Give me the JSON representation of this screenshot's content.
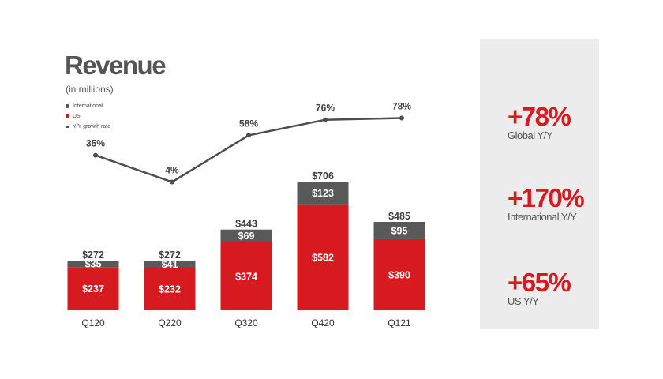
{
  "title": "Revenue",
  "subtitle": "(in millions)",
  "legend": {
    "international": "International",
    "us": "US",
    "growth": "Y/Y growth rate"
  },
  "colors": {
    "international": "#595959",
    "us": "#d71920",
    "growth_line": "#4d4d4d",
    "panel": "#ececec"
  },
  "chart_data": {
    "type": "bar",
    "stacked": true,
    "categories": [
      "Q120",
      "Q220",
      "Q320",
      "Q420",
      "Q121"
    ],
    "series": [
      {
        "name": "US",
        "values": [
          237,
          232,
          374,
          582,
          390
        ],
        "labels": [
          "$237",
          "$232",
          "$374",
          "$582",
          "$390"
        ]
      },
      {
        "name": "International",
        "values": [
          35,
          41,
          69,
          123,
          95
        ],
        "labels": [
          "$35",
          "$41",
          "$69",
          "$123",
          "$95"
        ]
      }
    ],
    "totals": [
      272,
      272,
      443,
      706,
      485
    ],
    "total_labels": [
      "$272",
      "$272",
      "$443",
      "$706",
      "$485"
    ],
    "line": {
      "name": "Y/Y growth rate",
      "values": [
        35,
        4,
        58,
        76,
        78
      ],
      "labels": [
        "35%",
        "4%",
        "58%",
        "76%",
        "78%"
      ]
    },
    "ylim": [
      0,
      706
    ]
  },
  "stats": [
    {
      "value": "+78%",
      "label": "Global Y/Y"
    },
    {
      "value": "+170%",
      "label": "International Y/Y"
    },
    {
      "value": "+65%",
      "label": "US Y/Y"
    }
  ]
}
